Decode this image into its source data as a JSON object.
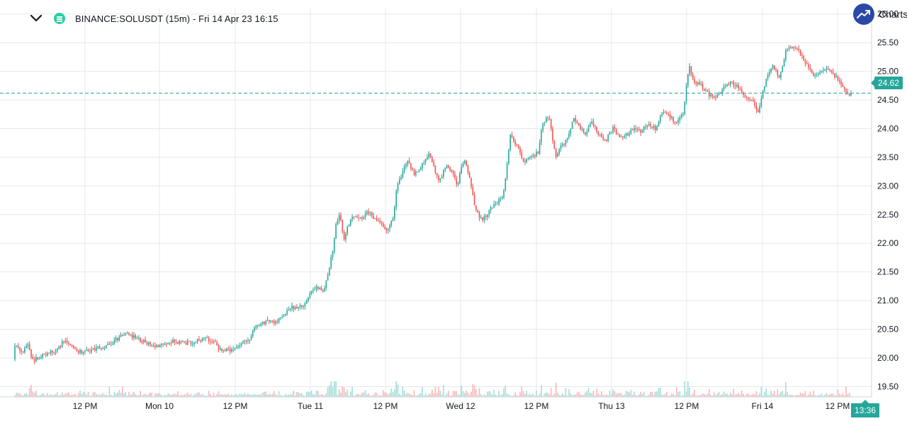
{
  "header": {
    "symbol_title": "BINANCE:SOLUSDT (15m) - Fri 14 Apr 23 16:15",
    "collapse_icon": "chevron-down-icon",
    "status_icon": "market-status-icon",
    "brand_icon": "trend-up-icon",
    "brand_text": "Charts p"
  },
  "price_label": "24.62",
  "time_label": "13:36",
  "colors": {
    "up": "#26a69a",
    "down": "#ef5350",
    "up_volume": "#a6dcd6",
    "down_volume": "#f6b8b7",
    "grid": "#e6e8ee",
    "text": "#131722",
    "brand": "#2a49a6"
  },
  "chart_data": {
    "type": "candlestick",
    "title": "BINANCE:SOLUSDT (15m)",
    "x_tick_labels": [
      "12 PM",
      "Mon 10",
      "12 PM",
      "Tue 11",
      "12 PM",
      "Wed 12",
      "12 PM",
      "Thu 13",
      "12 PM",
      "Fri 14",
      "12 PM"
    ],
    "y_tick_labels": [
      "26.00",
      "25.50",
      "25.00",
      "24.50",
      "24.00",
      "23.50",
      "23.00",
      "22.50",
      "22.00",
      "21.50",
      "21.00",
      "20.50",
      "20.00",
      "19.50"
    ],
    "y_ticks": [
      26.0,
      25.5,
      25.0,
      24.5,
      24.0,
      23.5,
      23.0,
      22.5,
      22.0,
      21.5,
      21.0,
      20.5,
      20.0,
      19.5
    ],
    "ylim": [
      19.32,
      26.12
    ],
    "grid": true,
    "current_price": 24.62,
    "price_path": [
      [
        0,
        19.98
      ],
      [
        10,
        20.18
      ],
      [
        20,
        20.25
      ],
      [
        30,
        20.1
      ],
      [
        40,
        20.22
      ],
      [
        45,
        19.95
      ],
      [
        60,
        20.05
      ],
      [
        80,
        20.12
      ],
      [
        90,
        20.3
      ],
      [
        110,
        20.1
      ],
      [
        130,
        20.15
      ],
      [
        150,
        20.2
      ],
      [
        170,
        20.38
      ],
      [
        180,
        20.42
      ],
      [
        200,
        20.3
      ],
      [
        220,
        20.2
      ],
      [
        240,
        20.3
      ],
      [
        260,
        20.25
      ],
      [
        280,
        20.3
      ],
      [
        290,
        20.35
      ],
      [
        300,
        20.3
      ],
      [
        310,
        20.15
      ],
      [
        330,
        20.12
      ],
      [
        340,
        20.25
      ],
      [
        350,
        20.3
      ],
      [
        360,
        20.55
      ],
      [
        380,
        20.65
      ],
      [
        390,
        20.62
      ],
      [
        400,
        20.75
      ],
      [
        410,
        20.9
      ],
      [
        420,
        20.85
      ],
      [
        430,
        20.95
      ],
      [
        440,
        21.15
      ],
      [
        450,
        21.25
      ],
      [
        455,
        21.1
      ],
      [
        460,
        21.3
      ],
      [
        470,
        21.9
      ],
      [
        475,
        22.4
      ],
      [
        480,
        22.5
      ],
      [
        485,
        22.0
      ],
      [
        490,
        22.3
      ],
      [
        500,
        22.5
      ],
      [
        510,
        22.45
      ],
      [
        520,
        22.55
      ],
      [
        530,
        22.4
      ],
      [
        540,
        22.3
      ],
      [
        545,
        22.2
      ],
      [
        555,
        22.45
      ],
      [
        560,
        23.0
      ],
      [
        570,
        23.3
      ],
      [
        575,
        23.45
      ],
      [
        585,
        23.2
      ],
      [
        595,
        23.35
      ],
      [
        605,
        23.55
      ],
      [
        610,
        23.4
      ],
      [
        615,
        23.2
      ],
      [
        620,
        23.1
      ],
      [
        630,
        23.35
      ],
      [
        640,
        23.2
      ],
      [
        645,
        23.0
      ],
      [
        655,
        23.5
      ],
      [
        665,
        23.0
      ],
      [
        670,
        22.6
      ],
      [
        680,
        22.4
      ],
      [
        690,
        22.55
      ],
      [
        700,
        22.7
      ],
      [
        710,
        22.8
      ],
      [
        715,
        23.3
      ],
      [
        720,
        23.9
      ],
      [
        730,
        23.7
      ],
      [
        740,
        23.4
      ],
      [
        750,
        23.5
      ],
      [
        760,
        23.6
      ],
      [
        765,
        24.1
      ],
      [
        775,
        24.2
      ],
      [
        780,
        23.8
      ],
      [
        785,
        23.5
      ],
      [
        790,
        23.65
      ],
      [
        800,
        23.8
      ],
      [
        810,
        24.2
      ],
      [
        815,
        24.1
      ],
      [
        825,
        23.9
      ],
      [
        835,
        24.1
      ],
      [
        845,
        23.9
      ],
      [
        855,
        23.8
      ],
      [
        865,
        24.0
      ],
      [
        875,
        23.85
      ],
      [
        885,
        23.9
      ],
      [
        895,
        24.0
      ],
      [
        905,
        23.95
      ],
      [
        915,
        24.1
      ],
      [
        925,
        24.0
      ],
      [
        935,
        24.3
      ],
      [
        945,
        24.2
      ],
      [
        955,
        24.1
      ],
      [
        965,
        24.3
      ],
      [
        972,
        25.1
      ],
      [
        980,
        24.8
      ],
      [
        990,
        24.75
      ],
      [
        1000,
        24.6
      ],
      [
        1010,
        24.55
      ],
      [
        1020,
        24.7
      ],
      [
        1030,
        24.8
      ],
      [
        1040,
        24.75
      ],
      [
        1050,
        24.6
      ],
      [
        1060,
        24.5
      ],
      [
        1070,
        24.3
      ],
      [
        1080,
        24.8
      ],
      [
        1090,
        25.1
      ],
      [
        1100,
        24.9
      ],
      [
        1110,
        25.4
      ],
      [
        1120,
        25.45
      ],
      [
        1130,
        25.3
      ],
      [
        1140,
        25.1
      ],
      [
        1150,
        24.9
      ],
      [
        1160,
        25.0
      ],
      [
        1170,
        25.05
      ],
      [
        1180,
        24.9
      ],
      [
        1190,
        24.7
      ],
      [
        1195,
        24.6
      ],
      [
        1201,
        24.62
      ]
    ]
  }
}
